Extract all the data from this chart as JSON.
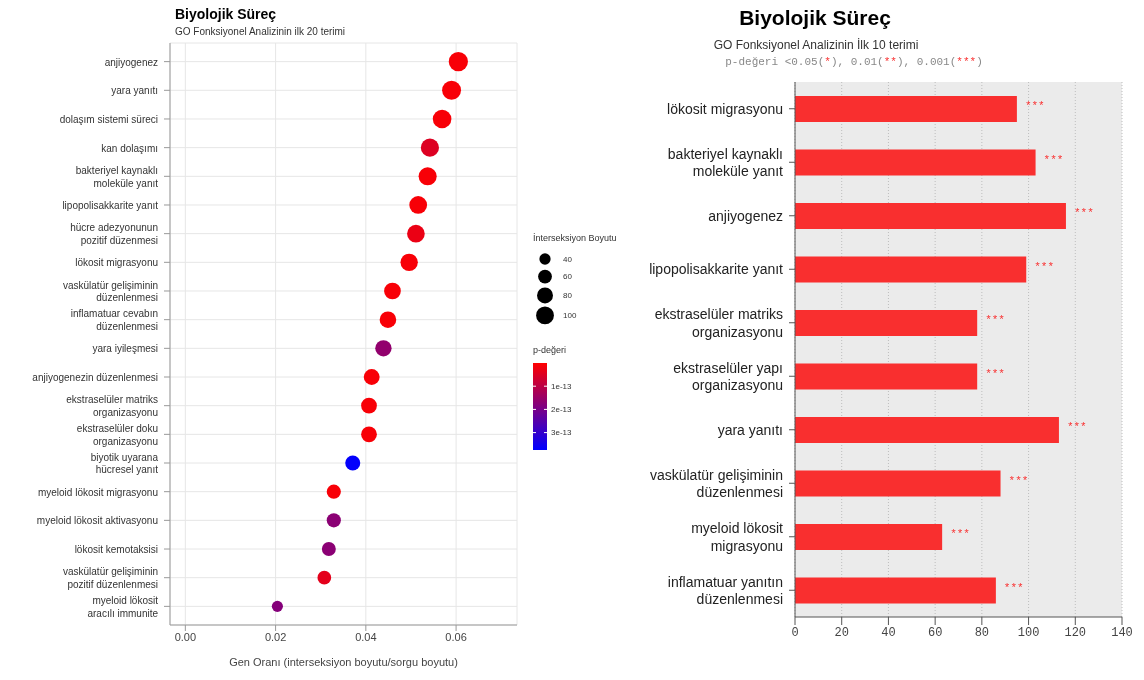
{
  "chart_data": [
    {
      "type": "bubble",
      "orientation": "horizontal",
      "title": "Biyolojik Süreç",
      "subtitle": "GO Fonksiyonel Analizinin ilk 20 terimi",
      "xlabel": "Gen Oranı  (interseksiyon boyutu/sorgu boyutu)",
      "legend_title": "İnterseksiyon Boyutu",
      "clabel": "p-değeri",
      "categories": [
        "anjiyogenez",
        "yara yanıtı",
        "dolaşım sistemi süreci",
        "kan dolaşımı",
        "bakteriyel kaynaklı moleküle yanıt",
        "lipopolisakkarite yanıt",
        "hücre adezyonunun pozitif düzenmesi",
        "lökosit migrasyonu",
        "vaskülatür gelişiminin düzenlenmesi",
        "inflamatuar cevabın düzenlenmesi",
        "yara iyileşmesi",
        "anjiyogenezin düzenlenmesi",
        "ekstraselüler matriks organizasyonu",
        "ekstraselüler doku organizasyonu",
        "biyotik uyarana hücresel yanıt",
        "myeloid lökosit migrasyonu",
        "myeloid lökosit aktivasyonu",
        "lökosit kemotaksisi",
        "vaskülatür gelişiminin pozitif düzenlenmesi",
        "myeloid lökosit aracılı immunite"
      ],
      "values": [
        0.0605,
        0.059,
        0.0569,
        0.0542,
        0.0537,
        0.0516,
        0.0511,
        0.0496,
        0.0459,
        0.0449,
        0.0439,
        0.0413,
        0.0407,
        0.0407,
        0.0371,
        0.0329,
        0.0329,
        0.0318,
        0.0308,
        0.0204
      ],
      "sizes": [
        116,
        113,
        109,
        104,
        103,
        99,
        98,
        95,
        88,
        86,
        84,
        79,
        78,
        78,
        71,
        63,
        63,
        61,
        59,
        39
      ],
      "size_legend": [
        40,
        60,
        80,
        100
      ],
      "cvalues": [
        1e-14,
        1e-14,
        1e-14,
        5e-14,
        1e-14,
        1e-14,
        3e-14,
        1e-14,
        1e-14,
        1e-14,
        1.6e-13,
        1e-14,
        1e-14,
        1e-14,
        3.7e-13,
        1e-14,
        1.7e-13,
        1.7e-13,
        4e-14,
        1.8e-13
      ],
      "clim": [
        0,
        3.75e-13
      ],
      "cticks": [
        {
          "value": 1e-13,
          "label": "1e-13"
        },
        {
          "value": 2e-13,
          "label": "2e-13"
        },
        {
          "value": 3e-13,
          "label": "3e-13"
        }
      ],
      "xlim": [
        -0.0034,
        0.0735
      ],
      "xticks": [
        {
          "value": 0,
          "label": "0.00"
        },
        0.02,
        0.04,
        0.06
      ],
      "grid": true,
      "marker": "circle"
    },
    {
      "type": "bar",
      "orientation": "horizontal",
      "title": "Biyolojik Süreç",
      "subtitle": "GO Fonksiyonel Analizinin İlk 10 terimi",
      "annotations": [
        "p-değeri <0.05(*), 0.01(**), 0.001(***)"
      ],
      "categories": [
        "lökosit migrasyonu",
        "bakteriyel kaynaklı moleküle yanıt",
        "anjiyogenez",
        "lipopolisakkarite yanıt",
        "ekstraselüler matriks organizasyonu",
        "ekstraselüler yapı organizasyonu",
        "yara yanıtı",
        "vaskülatür gelişiminin düzenlenmesi",
        "myeloid lökosit migrasyonu",
        "inflamatuar yanıtın düzenlenmesi"
      ],
      "values": [
        95,
        103,
        116,
        99,
        78,
        78,
        113,
        88,
        63,
        86
      ],
      "color": "#f92f2f",
      "value_labels": [
        "***",
        "***",
        "***",
        "***",
        "***",
        "***",
        "***",
        "***",
        "***",
        "***"
      ],
      "xlim": [
        0,
        140
      ],
      "xticks": [
        0,
        20,
        40,
        60,
        80,
        100,
        120,
        140
      ],
      "grid": "x"
    }
  ]
}
